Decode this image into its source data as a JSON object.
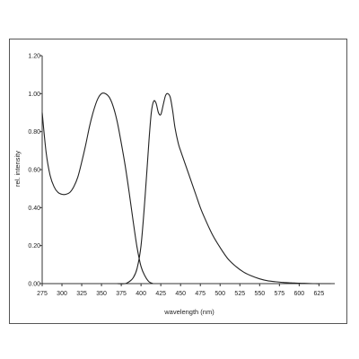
{
  "chart_data": {
    "type": "line",
    "title": "",
    "xlabel": "wavelength (nm)",
    "ylabel": "rel. intensity",
    "xlim": [
      275,
      645
    ],
    "ylim": [
      0,
      1.2
    ],
    "x_ticks": [
      275,
      300,
      325,
      350,
      375,
      400,
      425,
      450,
      475,
      500,
      525,
      550,
      575,
      600,
      625
    ],
    "y_ticks": [
      0.0,
      0.2,
      0.4,
      0.6,
      0.8,
      1.0,
      1.2
    ],
    "y_tick_labels": [
      "0.00",
      "0.20",
      "0.40",
      "0.60",
      "0.80",
      "1.00",
      "1.20"
    ],
    "grid": false,
    "legend": "none",
    "line_color": "#222222",
    "series": [
      {
        "x": [
          275,
          280,
          285,
          290,
          295,
          300,
          305,
          310,
          315,
          320,
          325,
          330,
          335,
          340,
          345,
          350,
          355,
          360,
          365,
          370,
          375,
          380,
          385,
          390,
          395,
          400,
          405,
          410,
          415
        ],
        "values": [
          0.9,
          0.69,
          0.57,
          0.51,
          0.48,
          0.47,
          0.47,
          0.48,
          0.51,
          0.56,
          0.64,
          0.73,
          0.83,
          0.91,
          0.97,
          1.0,
          1.0,
          0.98,
          0.93,
          0.85,
          0.74,
          0.62,
          0.48,
          0.33,
          0.19,
          0.09,
          0.04,
          0.01,
          0.0
        ]
      },
      {
        "x": [
          370,
          380,
          385,
          390,
          395,
          400,
          405,
          410,
          413,
          416,
          419,
          422,
          425,
          428,
          431,
          434,
          437,
          440,
          443,
          447,
          450,
          455,
          460,
          465,
          470,
          475,
          480,
          490,
          500,
          510,
          520,
          530,
          540,
          550,
          560,
          570,
          580,
          590,
          600,
          610,
          620,
          630,
          640
        ],
        "values": [
          0.0,
          0.0,
          0.01,
          0.03,
          0.08,
          0.2,
          0.45,
          0.75,
          0.9,
          0.96,
          0.95,
          0.9,
          0.89,
          0.94,
          0.99,
          1.0,
          0.98,
          0.91,
          0.82,
          0.74,
          0.7,
          0.64,
          0.58,
          0.52,
          0.46,
          0.4,
          0.35,
          0.26,
          0.19,
          0.13,
          0.09,
          0.06,
          0.04,
          0.025,
          0.015,
          0.01,
          0.006,
          0.004,
          0.002,
          0.001,
          0.0,
          0.0,
          0.0
        ]
      }
    ]
  }
}
